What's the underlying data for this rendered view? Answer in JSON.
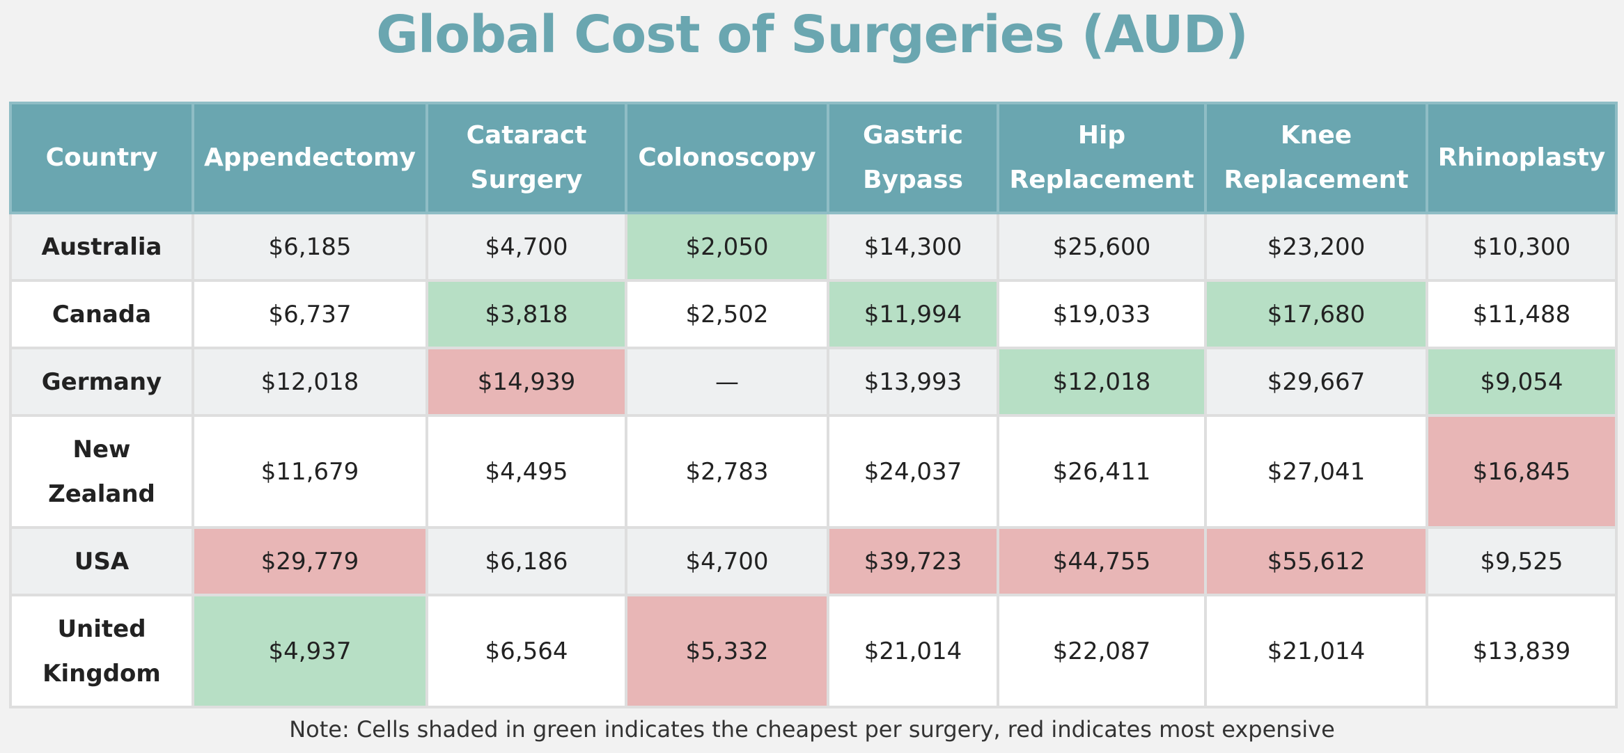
{
  "title": "Global Cost of Surgeries (AUD)",
  "note": "Note: Cells shaded in green indicates the cheapest per surgery, red indicates most expensive",
  "colors": {
    "header_bg": "#6aa6b0",
    "title": "#6aa6b0",
    "cheapest": "#b7dfc5",
    "most_expensive": "#e8b6b6",
    "row_alt": "#eef0f1",
    "row_plain": "#ffffff"
  },
  "chart_data": {
    "type": "table",
    "title": "Global Cost of Surgeries (AUD)",
    "columns": [
      {
        "key": "country",
        "label": "Country"
      },
      {
        "key": "appendectomy",
        "label": "Appendectomy"
      },
      {
        "key": "cataract",
        "label": "Cataract Surgery"
      },
      {
        "key": "colonoscopy",
        "label": "Colonoscopy"
      },
      {
        "key": "gastric",
        "label": "Gastric Bypass"
      },
      {
        "key": "hip",
        "label": "Hip Replacement"
      },
      {
        "key": "knee",
        "label": "Knee Replacement"
      },
      {
        "key": "rhinoplasty",
        "label": "Rhinoplasty"
      }
    ],
    "rows": [
      {
        "country": "Australia",
        "cells": [
          {
            "text": "$6,185",
            "value": 6185,
            "highlight": ""
          },
          {
            "text": "$4,700",
            "value": 4700,
            "highlight": ""
          },
          {
            "text": "$2,050",
            "value": 2050,
            "highlight": "green"
          },
          {
            "text": "$14,300",
            "value": 14300,
            "highlight": ""
          },
          {
            "text": "$25,600",
            "value": 25600,
            "highlight": ""
          },
          {
            "text": "$23,200",
            "value": 23200,
            "highlight": ""
          },
          {
            "text": "$10,300",
            "value": 10300,
            "highlight": ""
          }
        ]
      },
      {
        "country": "Canada",
        "cells": [
          {
            "text": "$6,737",
            "value": 6737,
            "highlight": ""
          },
          {
            "text": "$3,818",
            "value": 3818,
            "highlight": "green"
          },
          {
            "text": "$2,502",
            "value": 2502,
            "highlight": ""
          },
          {
            "text": "$11,994",
            "value": 11994,
            "highlight": "green"
          },
          {
            "text": "$19,033",
            "value": 19033,
            "highlight": ""
          },
          {
            "text": "$17,680",
            "value": 17680,
            "highlight": "green"
          },
          {
            "text": "$11,488",
            "value": 11488,
            "highlight": ""
          }
        ]
      },
      {
        "country": "Germany",
        "cells": [
          {
            "text": "$12,018",
            "value": 12018,
            "highlight": ""
          },
          {
            "text": "$14,939",
            "value": 14939,
            "highlight": "red"
          },
          {
            "text": "—",
            "value": null,
            "highlight": ""
          },
          {
            "text": "$13,993",
            "value": 13993,
            "highlight": ""
          },
          {
            "text": "$12,018",
            "value": 12018,
            "highlight": "green"
          },
          {
            "text": "$29,667",
            "value": 29667,
            "highlight": ""
          },
          {
            "text": "$9,054",
            "value": 9054,
            "highlight": "green"
          }
        ]
      },
      {
        "country": "New Zealand",
        "cells": [
          {
            "text": "$11,679",
            "value": 11679,
            "highlight": ""
          },
          {
            "text": "$4,495",
            "value": 4495,
            "highlight": ""
          },
          {
            "text": "$2,783",
            "value": 2783,
            "highlight": ""
          },
          {
            "text": "$24,037",
            "value": 24037,
            "highlight": ""
          },
          {
            "text": "$26,411",
            "value": 26411,
            "highlight": ""
          },
          {
            "text": "$27,041",
            "value": 27041,
            "highlight": ""
          },
          {
            "text": "$16,845",
            "value": 16845,
            "highlight": "red"
          }
        ]
      },
      {
        "country": "USA",
        "cells": [
          {
            "text": "$29,779",
            "value": 29779,
            "highlight": "red"
          },
          {
            "text": "$6,186",
            "value": 6186,
            "highlight": ""
          },
          {
            "text": "$4,700",
            "value": 4700,
            "highlight": ""
          },
          {
            "text": "$39,723",
            "value": 39723,
            "highlight": "red"
          },
          {
            "text": "$44,755",
            "value": 44755,
            "highlight": "red"
          },
          {
            "text": "$55,612",
            "value": 55612,
            "highlight": "red"
          },
          {
            "text": "$9,525",
            "value": 9525,
            "highlight": ""
          }
        ]
      },
      {
        "country": "United Kingdom",
        "cells": [
          {
            "text": "$4,937",
            "value": 4937,
            "highlight": "green"
          },
          {
            "text": "$6,564",
            "value": 6564,
            "highlight": ""
          },
          {
            "text": "$5,332",
            "value": 5332,
            "highlight": "red"
          },
          {
            "text": "$21,014",
            "value": 21014,
            "highlight": ""
          },
          {
            "text": "$22,087",
            "value": 22087,
            "highlight": ""
          },
          {
            "text": "$21,014",
            "value": 21014,
            "highlight": ""
          },
          {
            "text": "$13,839",
            "value": 13839,
            "highlight": ""
          }
        ]
      }
    ]
  }
}
